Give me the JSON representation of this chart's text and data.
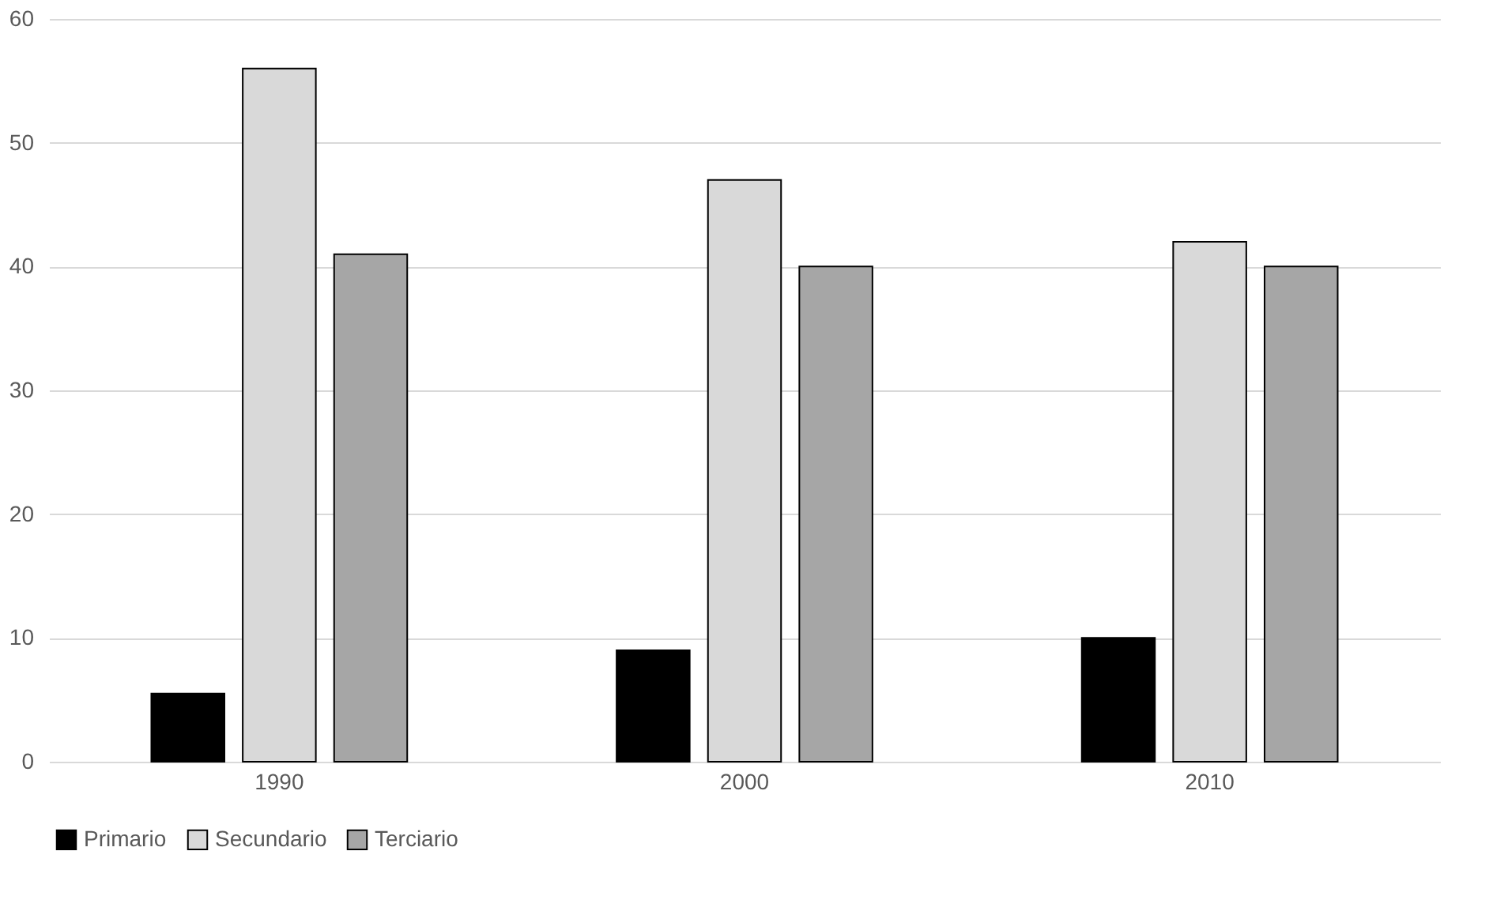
{
  "chart_data": {
    "type": "bar",
    "categories": [
      "1990",
      "2000",
      "2010"
    ],
    "series": [
      {
        "name": "Primario",
        "color": "#000000",
        "values": [
          5.5,
          9,
          10
        ]
      },
      {
        "name": "Secundario",
        "color": "#d9d9d9",
        "values": [
          56,
          47,
          42
        ]
      },
      {
        "name": "Terciario",
        "color": "#a6a6a6",
        "values": [
          41,
          40,
          40
        ]
      }
    ],
    "ylim": [
      0,
      60
    ],
    "yticks": [
      0,
      10,
      20,
      30,
      40,
      50,
      60
    ],
    "grid": "y",
    "legend": "bottom"
  }
}
